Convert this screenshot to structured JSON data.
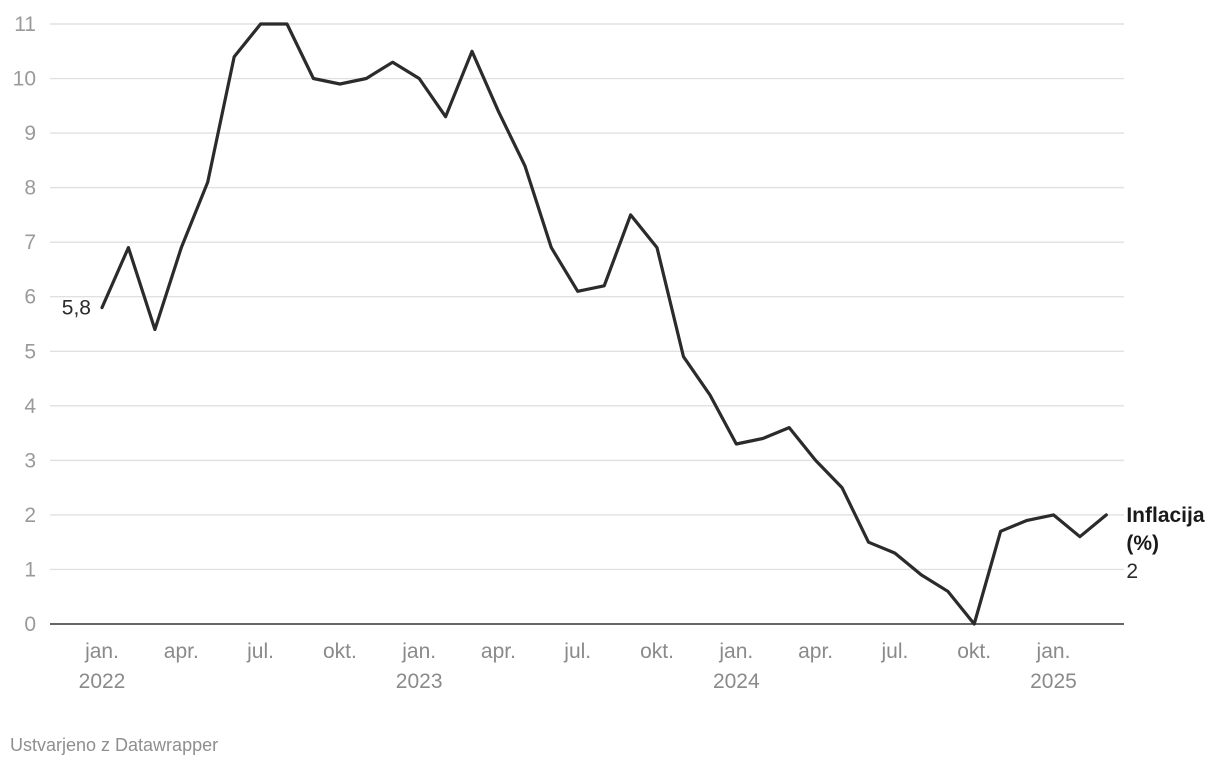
{
  "chart_data": {
    "type": "line",
    "ylim": [
      0,
      11
    ],
    "yticks": [
      0,
      1,
      2,
      3,
      4,
      5,
      6,
      7,
      8,
      9,
      10,
      11
    ],
    "grid": true,
    "x_ticks": [
      {
        "date": "2022-01",
        "line1": "jan.",
        "line2": "2022"
      },
      {
        "date": "2022-04",
        "line1": "apr.",
        "line2": ""
      },
      {
        "date": "2022-07",
        "line1": "jul.",
        "line2": ""
      },
      {
        "date": "2022-10",
        "line1": "okt.",
        "line2": ""
      },
      {
        "date": "2023-01",
        "line1": "jan.",
        "line2": "2023"
      },
      {
        "date": "2023-04",
        "line1": "apr.",
        "line2": ""
      },
      {
        "date": "2023-07",
        "line1": "jul.",
        "line2": ""
      },
      {
        "date": "2023-10",
        "line1": "okt.",
        "line2": ""
      },
      {
        "date": "2024-01",
        "line1": "jan.",
        "line2": "2024"
      },
      {
        "date": "2024-04",
        "line1": "apr.",
        "line2": ""
      },
      {
        "date": "2024-07",
        "line1": "jul.",
        "line2": ""
      },
      {
        "date": "2024-10",
        "line1": "okt.",
        "line2": ""
      },
      {
        "date": "2025-01",
        "line1": "jan.",
        "line2": "2025"
      }
    ],
    "series": [
      {
        "name_lines": [
          "Inflacija",
          "(%)"
        ],
        "color": "#2b2b2b",
        "start_label": "5,8",
        "end_label": "2",
        "x": [
          "2022-01",
          "2022-02",
          "2022-03",
          "2022-04",
          "2022-05",
          "2022-06",
          "2022-07",
          "2022-08",
          "2022-09",
          "2022-10",
          "2022-11",
          "2022-12",
          "2023-01",
          "2023-02",
          "2023-03",
          "2023-04",
          "2023-05",
          "2023-06",
          "2023-07",
          "2023-08",
          "2023-09",
          "2023-10",
          "2023-11",
          "2023-12",
          "2024-01",
          "2024-02",
          "2024-03",
          "2024-04",
          "2024-05",
          "2024-06",
          "2024-07",
          "2024-08",
          "2024-09",
          "2024-10",
          "2024-11",
          "2024-12",
          "2025-01",
          "2025-02",
          "2025-03"
        ],
        "values": [
          5.8,
          6.9,
          5.4,
          6.9,
          8.1,
          10.4,
          11.0,
          11.0,
          10.0,
          9.9,
          10.0,
          10.3,
          10.0,
          9.3,
          10.5,
          9.4,
          8.4,
          6.9,
          6.1,
          6.2,
          7.5,
          6.9,
          4.9,
          4.2,
          3.3,
          3.4,
          3.6,
          3.0,
          2.5,
          1.5,
          1.3,
          0.9,
          0.6,
          0.0,
          1.7,
          1.9,
          2.0,
          1.6,
          2.0
        ]
      }
    ]
  },
  "footer": {
    "credit": "Ustvarjeno z Datawrapper"
  }
}
